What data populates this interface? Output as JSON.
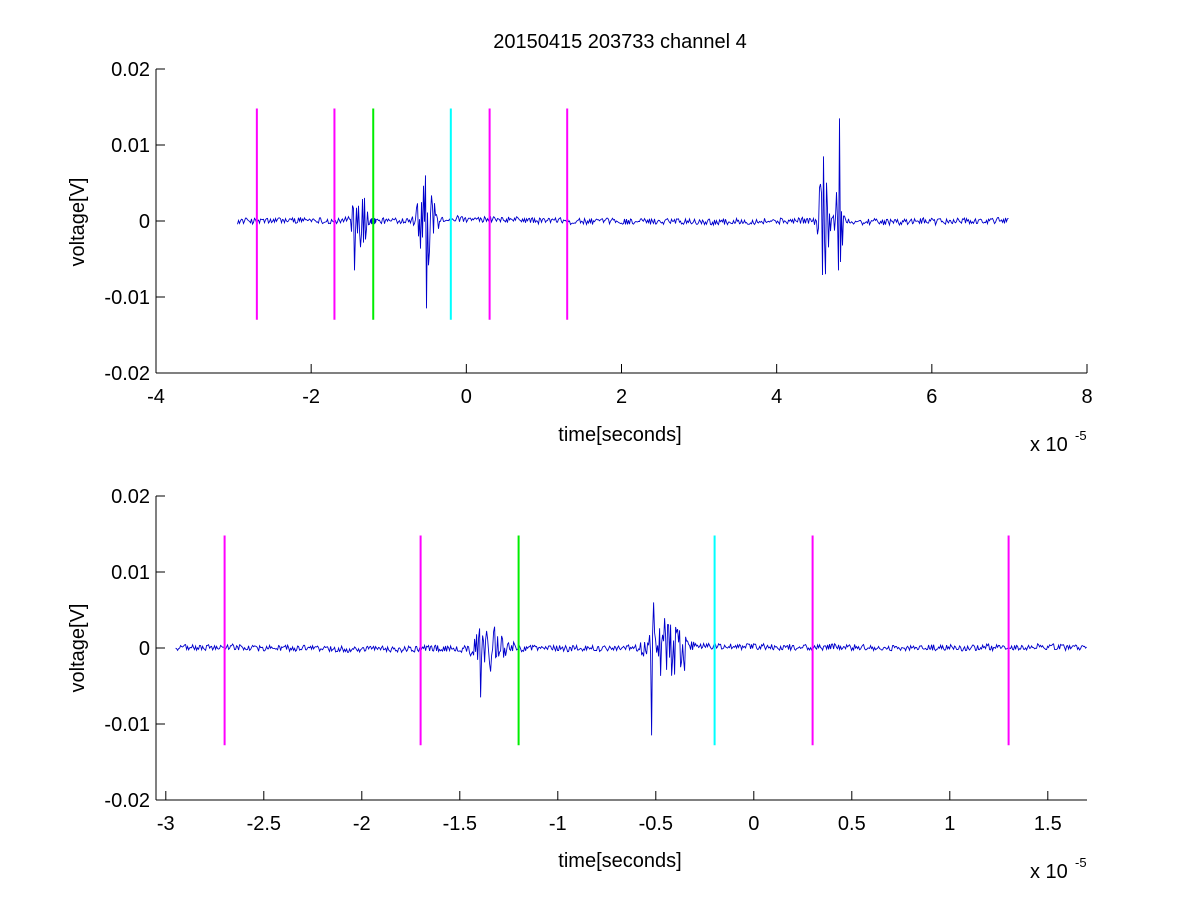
{
  "figure": {
    "title": "20150415 203733 channel 4",
    "colors": {
      "trace": "#0000cc",
      "magenta": "#ff00ff",
      "green": "#00ee00",
      "cyan": "#00ffff",
      "axis": "#000000"
    }
  },
  "chart_data": [
    {
      "type": "line",
      "title": "20150415 203733 channel 4",
      "xlabel": "time[seconds]",
      "ylabel": "voltage[V]",
      "x_multiplier": "x 10",
      "x_multiplier_exp": "-5",
      "xlim": [
        -4,
        8
      ],
      "ylim": [
        -0.02,
        0.02
      ],
      "xticks": [
        -4,
        -2,
        0,
        2,
        4,
        6,
        8
      ],
      "xtick_labels": [
        "-4",
        "-2",
        "0",
        "2",
        "4",
        "6",
        "8"
      ],
      "yticks": [
        0.02,
        0.01,
        0,
        -0.01,
        -0.02
      ],
      "ytick_labels": [
        "0.02",
        "0.01",
        "0",
        "-0.01",
        "-0.02"
      ],
      "grid": false,
      "trace": {
        "x_start": -2.95,
        "x_end": 7.0,
        "baseline": 0.0,
        "noise": 0.0004,
        "bursts": [
          {
            "center": -1.38,
            "width": 0.12,
            "amp": 0.005
          },
          {
            "center": -0.52,
            "width": 0.12,
            "amp": 0.0085
          },
          {
            "center": 4.6,
            "width": 0.08,
            "amp": 0.0085
          },
          {
            "center": 4.8,
            "width": 0.05,
            "amp": 0.013
          }
        ],
        "peaks": [
          {
            "x": -1.45,
            "y": -0.0065
          },
          {
            "x": -0.52,
            "y": -0.0115
          },
          {
            "x": -0.53,
            "y": 0.006
          },
          {
            "x": 4.6,
            "y": 0.0085
          },
          {
            "x": 4.62,
            "y": -0.007
          },
          {
            "x": 4.8,
            "y": 0.0135
          },
          {
            "x": 4.79,
            "y": -0.0065
          }
        ]
      },
      "marker": {
        "x": -1.2,
        "y": 0.0
      },
      "vlines": [
        {
          "x": -2.7,
          "color": "magenta",
          "ymin": -0.013,
          "ymax": 0.0148
        },
        {
          "x": -1.7,
          "color": "magenta",
          "ymin": -0.013,
          "ymax": 0.0148
        },
        {
          "x": -1.2,
          "color": "green",
          "ymin": -0.013,
          "ymax": 0.0148
        },
        {
          "x": -0.2,
          "color": "cyan",
          "ymin": -0.013,
          "ymax": 0.0148
        },
        {
          "x": 0.3,
          "color": "magenta",
          "ymin": -0.013,
          "ymax": 0.0148
        },
        {
          "x": 1.3,
          "color": "magenta",
          "ymin": -0.013,
          "ymax": 0.0148
        }
      ]
    },
    {
      "type": "line",
      "title": "",
      "xlabel": "time[seconds]",
      "ylabel": "voltage[V]",
      "x_multiplier": "x 10",
      "x_multiplier_exp": "-5",
      "xlim": [
        -3.05,
        1.7
      ],
      "ylim": [
        -0.02,
        0.02
      ],
      "xticks": [
        -3,
        -2.5,
        -2,
        -1.5,
        -1,
        -0.5,
        0,
        0.5,
        1,
        1.5
      ],
      "xtick_labels": [
        "-3",
        "-2.5",
        "-2",
        "-1.5",
        "-1",
        "-0.5",
        "0",
        "0.5",
        "1",
        "1.5"
      ],
      "yticks": [
        0.02,
        0.01,
        0,
        -0.01,
        -0.02
      ],
      "ytick_labels": [
        "0.02",
        "0.01",
        "0",
        "-0.01",
        "-0.02"
      ],
      "grid": false,
      "trace": {
        "x_start": -2.95,
        "x_end": 1.7,
        "baseline": 0.0,
        "noise": 0.0004,
        "bursts": [
          {
            "center": -1.35,
            "width": 0.1,
            "amp": 0.0035
          },
          {
            "center": -0.45,
            "width": 0.12,
            "amp": 0.004
          }
        ],
        "peaks": [
          {
            "x": -1.39,
            "y": -0.0065
          },
          {
            "x": -1.41,
            "y": 0.0018
          },
          {
            "x": -0.52,
            "y": -0.0115
          },
          {
            "x": -0.51,
            "y": 0.006
          },
          {
            "x": -0.4,
            "y": -0.0035
          },
          {
            "x": -0.35,
            "y": -0.003
          }
        ]
      },
      "vlines": [
        {
          "x": -2.7,
          "color": "magenta",
          "ymin": -0.0128,
          "ymax": 0.0148
        },
        {
          "x": -1.7,
          "color": "magenta",
          "ymin": -0.0128,
          "ymax": 0.0148
        },
        {
          "x": -1.2,
          "color": "green",
          "ymin": -0.0128,
          "ymax": 0.0148
        },
        {
          "x": -0.2,
          "color": "cyan",
          "ymin": -0.0128,
          "ymax": 0.0148
        },
        {
          "x": 0.3,
          "color": "magenta",
          "ymin": -0.0128,
          "ymax": 0.0148
        },
        {
          "x": 1.3,
          "color": "magenta",
          "ymin": -0.0128,
          "ymax": 0.0148
        }
      ]
    }
  ]
}
